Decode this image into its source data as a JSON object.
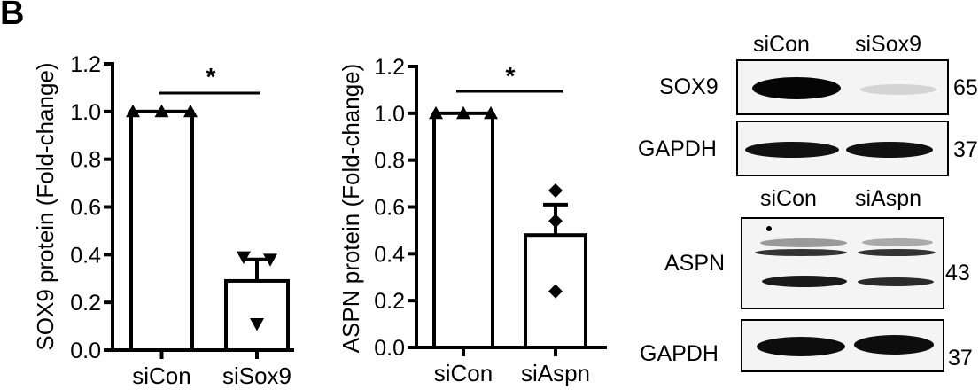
{
  "panel_label": "B",
  "chart_data": [
    {
      "type": "bar",
      "title": "",
      "xlabel": "",
      "ylabel": "SOX9 protein (Fold-change)",
      "categories": [
        "siCon",
        "siSox9"
      ],
      "values": [
        1.0,
        0.29
      ],
      "error_sem": [
        0.0,
        0.09
      ],
      "points": [
        [
          1.0,
          1.0,
          1.0
        ],
        [
          0.39,
          0.38,
          0.11
        ]
      ],
      "marker": [
        "triangle-up",
        "triangle-down"
      ],
      "ylim": [
        0,
        1.2
      ],
      "yticks": [
        "0.0",
        "0.2",
        "0.4",
        "0.6",
        "0.8",
        "1.0",
        "1.2"
      ],
      "significance": {
        "between": [
          "siCon",
          "siSox9"
        ],
        "label": "*"
      },
      "grid": false
    },
    {
      "type": "bar",
      "title": "",
      "xlabel": "",
      "ylabel": "ASPN protein (Fold-change)",
      "categories": [
        "siCon",
        "siAspn"
      ],
      "values": [
        1.0,
        0.48
      ],
      "error_sem": [
        0.0,
        0.13
      ],
      "points": [
        [
          1.0,
          1.0,
          1.0
        ],
        [
          0.67,
          0.54,
          0.24
        ]
      ],
      "marker": [
        "triangle-up",
        "diamond"
      ],
      "ylim": [
        0,
        1.2
      ],
      "yticks": [
        "0.0",
        "0.2",
        "0.4",
        "0.6",
        "0.8",
        "1.0",
        "1.2"
      ],
      "significance": {
        "between": [
          "siCon",
          "siAspn"
        ],
        "label": "*"
      },
      "grid": false
    }
  ],
  "blots": {
    "sox9": {
      "lanes": [
        "siCon",
        "siSox9"
      ],
      "rows": [
        {
          "label": "SOX9",
          "kda": "65"
        },
        {
          "label": "GAPDH",
          "kda": "37"
        }
      ]
    },
    "aspn": {
      "lanes": [
        "siCon",
        "siAspn"
      ],
      "rows": [
        {
          "label": "ASPN",
          "kda": "43"
        },
        {
          "label": "GAPDH",
          "kda": "37"
        }
      ]
    }
  }
}
